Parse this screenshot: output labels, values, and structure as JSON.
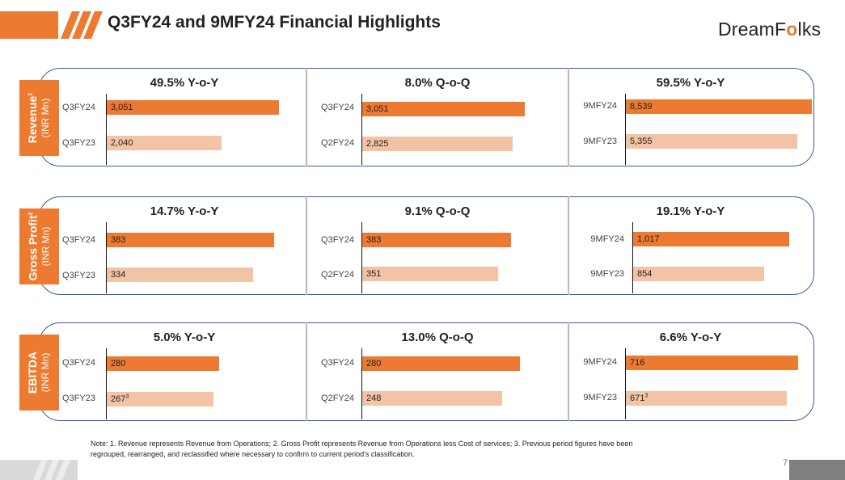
{
  "header": {
    "title": "Q3FY24 and 9MFY24 Financial Highlights",
    "logo": {
      "part1": "DreamF",
      "part2": "lks",
      "dot": "o"
    },
    "brand_color": "#ec7a31"
  },
  "colors": {
    "current": "#ec7a31",
    "previous": "#f2c3a5",
    "outline": "#3b5b9a"
  },
  "rows": [
    {
      "label": "Revenue",
      "sup": "1",
      "unit": "(INR Mn)"
    },
    {
      "label": "Gross Profit",
      "sup": "2",
      "unit": "(INR Mn)"
    },
    {
      "label": "EBITDA",
      "sup": "",
      "unit": "(INR Mn)"
    }
  ],
  "chart_data": [
    {
      "type": "bar",
      "metric": "Revenue",
      "unit": "(INR Mn)",
      "panels": [
        {
          "heading": "49.5% Y-o-Y",
          "categories": [
            "Q3FY24",
            "Q3FY23"
          ],
          "values": [
            3051,
            2040
          ],
          "labels": [
            "3,051",
            "2,040"
          ],
          "label_sups": [
            "",
            ""
          ],
          "xmax": 3300
        },
        {
          "heading": "8.0% Q-o-Q",
          "categories": [
            "Q3FY24",
            "Q2FY24"
          ],
          "values": [
            3051,
            2825
          ],
          "labels": [
            "3,051",
            "2,825"
          ],
          "label_sups": [
            "",
            ""
          ],
          "xmax": 3500
        },
        {
          "heading": "59.5% Y-o-Y",
          "categories": [
            "9MFY24",
            "9MFY23"
          ],
          "values": [
            8539,
            5355
          ],
          "labels": [
            "8,539",
            "5,355"
          ],
          "label_sups": [
            "",
            ""
          ],
          "xmax": 5800
        }
      ]
    },
    {
      "type": "bar",
      "metric": "Gross Profit",
      "unit": "(INR Mn)",
      "panels": [
        {
          "heading": "14.7% Y-o-Y",
          "categories": [
            "Q3FY24",
            "Q3FY23"
          ],
          "values": [
            383,
            334
          ],
          "labels": [
            "383",
            "334"
          ],
          "label_sups": [
            "",
            ""
          ],
          "xmax": 425
        },
        {
          "heading": "9.1% Q-o-Q",
          "categories": [
            "Q3FY24",
            "Q2FY24"
          ],
          "values": [
            383,
            351
          ],
          "labels": [
            "383",
            "351"
          ],
          "label_sups": [
            "",
            ""
          ],
          "xmax": 480
        },
        {
          "heading": "19.1% Y-o-Y",
          "categories": [
            "9MFY24",
            "9MFY23"
          ],
          "values": [
            1017,
            854
          ],
          "labels": [
            "1,017",
            "854"
          ],
          "label_sups": [
            "",
            ""
          ],
          "xmax": 1210
        }
      ]
    },
    {
      "type": "bar",
      "metric": "EBITDA",
      "unit": "(INR Mn)",
      "panels": [
        {
          "heading": "5.0% Y-o-Y",
          "categories": [
            "Q3FY24",
            "Q3FY23"
          ],
          "values": [
            280,
            267
          ],
          "labels": [
            "280",
            "267"
          ],
          "label_sups": [
            "",
            "3"
          ],
          "xmax": 465
        },
        {
          "heading": "13.0% Q-o-Q",
          "categories": [
            "Q3FY24",
            "Q2FY24"
          ],
          "values": [
            280,
            248
          ],
          "labels": [
            "280",
            "248"
          ],
          "label_sups": [
            "",
            ""
          ],
          "xmax": 330
        },
        {
          "heading": "6.6% Y-o-Y",
          "categories": [
            "9MFY24",
            "9MFY23"
          ],
          "values": [
            716,
            671
          ],
          "labels": [
            "716",
            "671"
          ],
          "label_sups": [
            "",
            "3"
          ],
          "xmax": 775
        }
      ]
    }
  ],
  "footer": {
    "note_line1": "Note: 1. Revenue represents Revenue from  Operations;  2. Gross Profit  represents Revenue  from Operations less Cost of services; 3. Previous period figures have been",
    "note_line2": "regrouped, rearranged, and reclassified where necessary to confirm to current period's classification.",
    "page_number": "7"
  }
}
